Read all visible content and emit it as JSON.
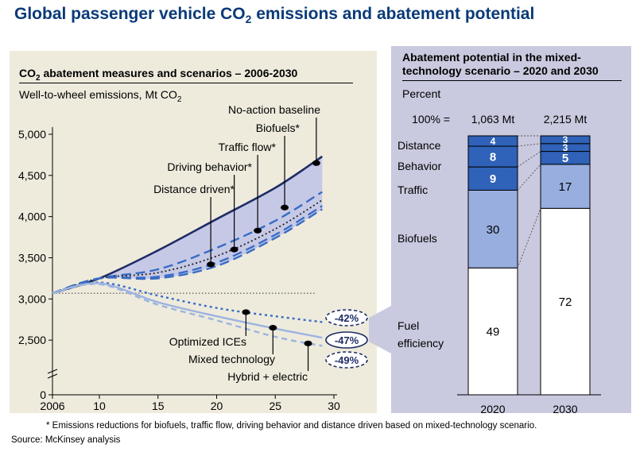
{
  "page": {
    "title_prefix": "Global passenger vehicle CO",
    "title_sub": "2",
    "title_suffix": " emissions and abatement potential",
    "footnote": "* Emissions reductions for biofuels, traffic flow, driving behavior and distance driven based on mixed-technology scenario.",
    "source": "Source: McKinsey analysis"
  },
  "colors": {
    "panel": "#eeebdd",
    "right_panel": "#c9c9df",
    "baseline": "#1f2d66",
    "scenario_line": "#3a6cc4",
    "tech_line": "#9db3e0",
    "wedge_fill": "#c6c9e6",
    "dark_blue": "#2f62b8",
    "mid_blue": "#98aedf"
  },
  "left_chart": {
    "title_prefix": "CO",
    "title_sub": "2",
    "title_suffix": " abatement measures and scenarios – 2006-2030",
    "unit_prefix": "Well-to-wheel emissions, Mt CO",
    "unit_sub": "2"
  },
  "right_chart": {
    "title": "Abatement potential in the mixed-technology scenario – 2020 and 2030",
    "unit": "Percent"
  },
  "chart_data": [
    {
      "type": "line",
      "x_ticks": [
        "2006",
        "10",
        "15",
        "20",
        "25",
        "30"
      ],
      "x_tick_values": [
        2006,
        2010,
        2015,
        2020,
        2025,
        2030
      ],
      "xlim": [
        2006,
        2030
      ],
      "y_ticks": [
        "0",
        "2,500",
        "3,000",
        "3,500",
        "4,000",
        "4,500",
        "5,000"
      ],
      "y_tick_values": [
        0,
        2500,
        3000,
        3500,
        4000,
        4500,
        5000
      ],
      "ylim": [
        2000,
        5000
      ],
      "axis_break": true,
      "reference_line": 3070,
      "x": [
        2006,
        2010,
        2015,
        2020,
        2025,
        2029
      ],
      "series": [
        {
          "name": "No-action baseline",
          "style": "solid-thick",
          "values": [
            3070,
            3250,
            3590,
            3970,
            4350,
            4730
          ]
        },
        {
          "name": "Biofuels*",
          "style": "long-dash",
          "values": [
            3070,
            3250,
            3360,
            3620,
            3950,
            4300
          ]
        },
        {
          "name": "Traffic flow*",
          "style": "dotted",
          "values": [
            3070,
            3250,
            3320,
            3520,
            3850,
            4200
          ]
        },
        {
          "name": "Driving behavior*",
          "style": "long-dash",
          "values": [
            3070,
            3250,
            3270,
            3440,
            3780,
            4130
          ]
        },
        {
          "name": "Distance driven*",
          "style": "long-dash",
          "values": [
            3070,
            3250,
            3250,
            3400,
            3740,
            4090
          ]
        },
        {
          "name": "Optimized ICEs",
          "style": "dotted-thick",
          "values": [
            3070,
            3200,
            3040,
            2890,
            2790,
            2720
          ]
        },
        {
          "name": "Mixed technology",
          "style": "solid-light",
          "values": [
            3070,
            3190,
            2960,
            2790,
            2640,
            2530
          ]
        },
        {
          "name": "Hybrid + electric",
          "style": "dashed-light",
          "values": [
            3070,
            3180,
            2930,
            2740,
            2540,
            2430
          ]
        }
      ],
      "annotations": [
        {
          "label": "-42%",
          "series": "Optimized ICEs"
        },
        {
          "label": "-47%",
          "series": "Mixed technology"
        },
        {
          "label": "-49%",
          "series": "Hybrid + electric"
        }
      ]
    },
    {
      "type": "bar",
      "stacked": true,
      "categories": [
        "2020",
        "2030"
      ],
      "totals_label": "100% =",
      "totals": [
        "1,063 Mt",
        "2,215 Mt"
      ],
      "series": [
        {
          "name": "Fuel efficiency",
          "values": [
            49,
            72
          ]
        },
        {
          "name": "Biofuels",
          "values": [
            30,
            17
          ]
        },
        {
          "name": "Traffic",
          "values": [
            9,
            5
          ]
        },
        {
          "name": "Behavior",
          "values": [
            8,
            3
          ]
        },
        {
          "name": "Distance",
          "values": [
            4,
            3
          ]
        }
      ]
    }
  ]
}
